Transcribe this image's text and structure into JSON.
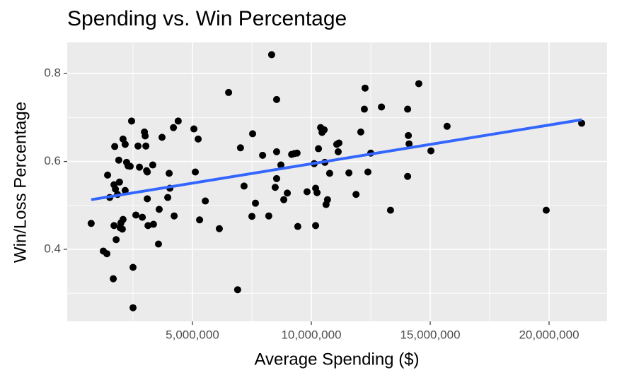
{
  "chart_data": {
    "type": "scatter",
    "title": "Spending vs. Win Percentage",
    "x_label": "Average Spending ($)",
    "y_label": "Win/Loss Percentage",
    "xlim": [
      -268000,
      22440000
    ],
    "ylim": [
      0.236,
      0.871
    ],
    "xticks": [
      {
        "value": 5000000,
        "label": "5,000,000"
      },
      {
        "value": 10000000,
        "label": "10,000,000"
      },
      {
        "value": 15000000,
        "label": "15,000,000"
      },
      {
        "value": 20000000,
        "label": "20,000,000"
      }
    ],
    "yticks": [
      0.4,
      0.6,
      0.8
    ],
    "minor_xticks": [
      2500000,
      7500000,
      12500000,
      17500000
    ],
    "minor_yticks": [
      0.3,
      0.5,
      0.7
    ],
    "grid": true,
    "color": "#000000",
    "x": [
      740000,
      1250000,
      1400000,
      1430000,
      1520000,
      1670000,
      1730000,
      1700000,
      1760000,
      1700000,
      1790000,
      1850000,
      1900000,
      1930000,
      1960000,
      1990000,
      2050000,
      2080000,
      2080000,
      2170000,
      2170000,
      2230000,
      2290000,
      2380000,
      2440000,
      2500000,
      2500000,
      2620000,
      2710000,
      2770000,
      2890000,
      2980000,
      3010000,
      3040000,
      3070000,
      3100000,
      3100000,
      3130000,
      3330000,
      3360000,
      3570000,
      3600000,
      3720000,
      3960000,
      4020000,
      4050000,
      4200000,
      4230000,
      4400000,
      5060000,
      5120000,
      5240000,
      5300000,
      5540000,
      6130000,
      6520000,
      6900000,
      7020000,
      7170000,
      7500000,
      7530000,
      7650000,
      7950000,
      8210000,
      8330000,
      8480000,
      8540000,
      8540000,
      8540000,
      8720000,
      8840000,
      8990000,
      9170000,
      9290000,
      9400000,
      9430000,
      9820000,
      10120000,
      10180000,
      10180000,
      10240000,
      10300000,
      10390000,
      10450000,
      10540000,
      10570000,
      10620000,
      10680000,
      10770000,
      11070000,
      11130000,
      11160000,
      11580000,
      11880000,
      12080000,
      12230000,
      12260000,
      12380000,
      12500000,
      12950000,
      13330000,
      14050000,
      14050000,
      14080000,
      14110000,
      14520000,
      15030000,
      15710000,
      19880000,
      21370000
    ],
    "y": [
      0.459,
      0.396,
      0.39,
      0.569,
      0.518,
      0.333,
      0.634,
      0.547,
      0.537,
      0.454,
      0.422,
      0.525,
      0.603,
      0.553,
      0.449,
      0.46,
      0.446,
      0.468,
      0.651,
      0.639,
      0.534,
      0.598,
      0.59,
      0.589,
      0.692,
      0.359,
      0.267,
      0.478,
      0.635,
      0.587,
      0.473,
      0.667,
      0.658,
      0.635,
      0.579,
      0.515,
      0.576,
      0.454,
      0.592,
      0.457,
      0.412,
      0.491,
      0.655,
      0.518,
      0.573,
      0.539,
      0.677,
      0.476,
      0.692,
      0.674,
      0.576,
      0.651,
      0.467,
      0.51,
      0.447,
      0.757,
      0.308,
      0.631,
      0.544,
      0.475,
      0.663,
      0.505,
      0.614,
      0.476,
      0.843,
      0.541,
      0.622,
      0.741,
      0.561,
      0.592,
      0.513,
      0.528,
      0.616,
      0.618,
      0.619,
      0.452,
      0.531,
      0.595,
      0.539,
      0.454,
      0.529,
      0.629,
      0.677,
      0.666,
      0.672,
      0.598,
      0.502,
      0.513,
      0.573,
      0.639,
      0.622,
      0.642,
      0.574,
      0.525,
      0.667,
      0.719,
      0.767,
      0.576,
      0.619,
      0.724,
      0.489,
      0.719,
      0.566,
      0.659,
      0.64,
      0.777,
      0.624,
      0.68,
      0.489,
      0.687
    ],
    "trend": {
      "color": "#3366FF",
      "x": [
        740000,
        21370000
      ],
      "y": [
        0.513,
        0.695
      ]
    }
  }
}
